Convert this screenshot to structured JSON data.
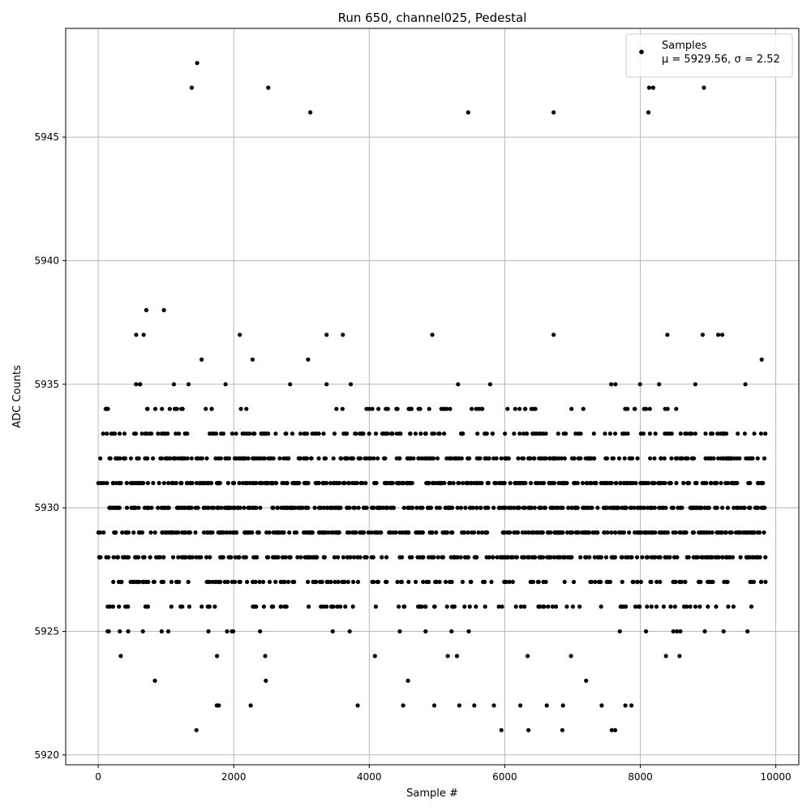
{
  "chart_data": {
    "type": "scatter",
    "title": "Run 650, channel025, Pedestal",
    "xlabel": "Sample #",
    "ylabel": "ADC Counts",
    "xlim": [
      -480,
      10340
    ],
    "ylim": [
      5919.6,
      5949.4
    ],
    "xticks": [
      0,
      2000,
      4000,
      6000,
      8000,
      10000
    ],
    "yticks": [
      5920,
      5925,
      5930,
      5935,
      5940,
      5945
    ],
    "grid": true,
    "legend": {
      "placement": "top-right",
      "label": "Samples",
      "stats": "μ = 5929.56, σ = 2.52"
    },
    "marker_color": "#000000",
    "series": [
      {
        "name": "Samples",
        "n_points": 9856,
        "mean": 5929.56,
        "std": 2.52,
        "outliers": [
          {
            "x": 1380,
            "y": 5947
          },
          {
            "x": 1460,
            "y": 5948
          },
          {
            "x": 2510,
            "y": 5947
          },
          {
            "x": 3130,
            "y": 5946
          },
          {
            "x": 5460,
            "y": 5946
          },
          {
            "x": 6720,
            "y": 5946
          },
          {
            "x": 8120,
            "y": 5946
          },
          {
            "x": 8130,
            "y": 5947
          },
          {
            "x": 8190,
            "y": 5947
          },
          {
            "x": 8940,
            "y": 5947
          },
          {
            "x": 710,
            "y": 5938
          },
          {
            "x": 970,
            "y": 5938
          },
          {
            "x": 560,
            "y": 5937
          },
          {
            "x": 670,
            "y": 5937
          },
          {
            "x": 2090,
            "y": 5937
          },
          {
            "x": 3370,
            "y": 5937
          },
          {
            "x": 3610,
            "y": 5937
          },
          {
            "x": 4930,
            "y": 5937
          },
          {
            "x": 6720,
            "y": 5937
          },
          {
            "x": 8400,
            "y": 5937
          },
          {
            "x": 8920,
            "y": 5937
          },
          {
            "x": 9150,
            "y": 5937
          },
          {
            "x": 9210,
            "y": 5937
          },
          {
            "x": 1450,
            "y": 5921
          },
          {
            "x": 5950,
            "y": 5921
          },
          {
            "x": 6350,
            "y": 5921
          },
          {
            "x": 6850,
            "y": 5921
          },
          {
            "x": 7580,
            "y": 5921
          },
          {
            "x": 7630,
            "y": 5921
          },
          {
            "x": 1750,
            "y": 5922
          },
          {
            "x": 1780,
            "y": 5922
          },
          {
            "x": 2250,
            "y": 5922
          },
          {
            "x": 3830,
            "y": 5922
          },
          {
            "x": 4500,
            "y": 5922
          },
          {
            "x": 4960,
            "y": 5922
          },
          {
            "x": 5330,
            "y": 5922
          },
          {
            "x": 5550,
            "y": 5922
          },
          {
            "x": 5840,
            "y": 5922
          },
          {
            "x": 6230,
            "y": 5922
          },
          {
            "x": 6620,
            "y": 5922
          },
          {
            "x": 6860,
            "y": 5922
          },
          {
            "x": 7430,
            "y": 5922
          },
          {
            "x": 7780,
            "y": 5922
          },
          {
            "x": 7870,
            "y": 5922
          }
        ],
        "bands": [
          {
            "y": 5936,
            "density": 0.012
          },
          {
            "y": 5935,
            "density": 0.05
          },
          {
            "y": 5934,
            "density": 0.2
          },
          {
            "y": 5933,
            "density": 0.5
          },
          {
            "y": 5932,
            "density": 0.8
          },
          {
            "y": 5931,
            "density": 1.0
          },
          {
            "y": 5930,
            "density": 1.0
          },
          {
            "y": 5929,
            "density": 1.0
          },
          {
            "y": 5928,
            "density": 0.8
          },
          {
            "y": 5927,
            "density": 0.5
          },
          {
            "y": 5926,
            "density": 0.3
          },
          {
            "y": 5925,
            "density": 0.08
          },
          {
            "y": 5924,
            "density": 0.03
          },
          {
            "y": 5923,
            "density": 0.012
          }
        ]
      }
    ]
  }
}
